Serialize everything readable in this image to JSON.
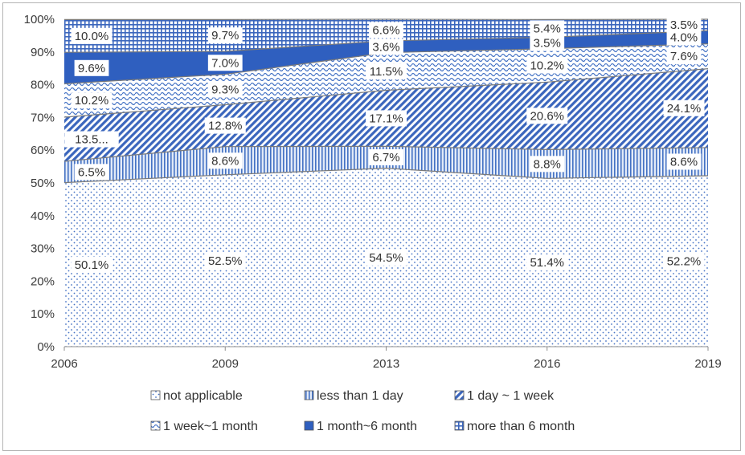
{
  "chart_data": {
    "type": "area",
    "stacked": true,
    "stack_mode": "percent",
    "title": "",
    "xlabel": "",
    "ylabel": "",
    "x": [
      "2006",
      "2009",
      "2013",
      "2016",
      "2019"
    ],
    "ylim": [
      0,
      100
    ],
    "yticks": [
      "0%",
      "10%",
      "20%",
      "30%",
      "40%",
      "50%",
      "60%",
      "70%",
      "80%",
      "90%",
      "100%"
    ],
    "legend_position": "bottom",
    "series": [
      {
        "name": "not applicable",
        "values": [
          50.1,
          52.5,
          54.5,
          51.4,
          52.2
        ],
        "labels": [
          "50.1%",
          "52.5%",
          "54.5%",
          "51.4%",
          "52.2%"
        ],
        "pattern": "dots",
        "color": "#4472c4"
      },
      {
        "name": "less than 1 day",
        "values": [
          6.5,
          8.6,
          6.7,
          8.8,
          8.6
        ],
        "labels": [
          "6.5%",
          "8.6%",
          "6.7%",
          "8.8%",
          "8.6%"
        ],
        "pattern": "vlines",
        "color": "#4472c4"
      },
      {
        "name": "1 day ~ 1 week",
        "values": [
          13.5,
          12.8,
          17.1,
          20.6,
          24.1
        ],
        "labels": [
          "13.5...",
          "12.8%",
          "17.1%",
          "20.6%",
          "24.1%"
        ],
        "pattern": "diag",
        "color": "#4472c4"
      },
      {
        "name": "1 week~1 month",
        "values": [
          10.2,
          9.3,
          11.5,
          10.2,
          7.6
        ],
        "labels": [
          "10.2%",
          "9.3%",
          "11.5%",
          "10.2%",
          "7.6%"
        ],
        "pattern": "wave",
        "color": "#4472c4"
      },
      {
        "name": "1 month~6 month",
        "values": [
          9.6,
          7.0,
          3.6,
          3.5,
          4.0
        ],
        "labels": [
          "9.6%",
          "7.0%",
          "3.6%",
          "3.5%",
          "4.0%"
        ],
        "pattern": "solid",
        "color": "#2f5fbf"
      },
      {
        "name": "more than 6 month",
        "values": [
          10.0,
          9.7,
          6.6,
          5.4,
          3.5
        ],
        "labels": [
          "10.0%",
          "9.7%",
          "6.6%",
          "5.4%",
          "3.5%"
        ],
        "pattern": "grid",
        "color": "#4472c4"
      }
    ]
  }
}
